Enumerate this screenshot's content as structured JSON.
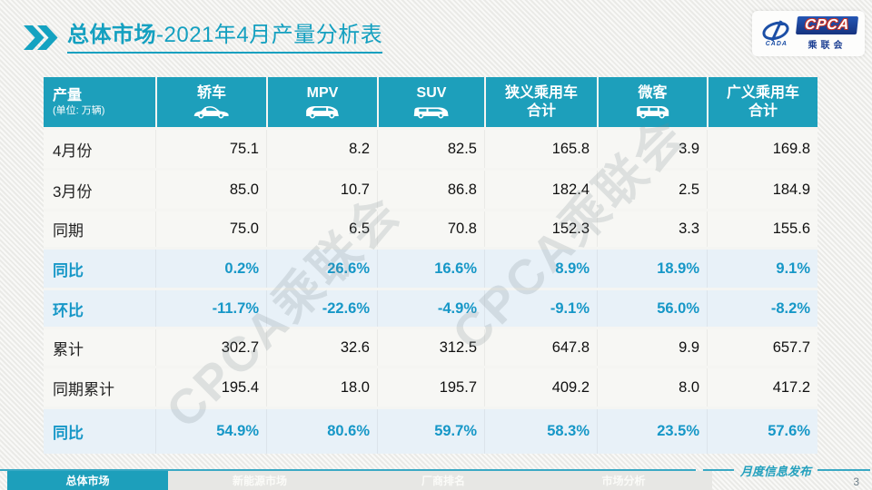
{
  "title": {
    "prefix": "总体市场",
    "rest": "-2021年4月产量分析表"
  },
  "logo": {
    "cpca": "CPCA",
    "sub": "乘联会",
    "emblem_text": "CADA"
  },
  "chart_data": {
    "type": "table",
    "title": "总体市场-2021年4月产量分析表",
    "corner_label": "产量",
    "unit_note": "(单位: 万辆)",
    "columns": [
      {
        "label": "轿车",
        "icon": "sedan-icon"
      },
      {
        "label": "MPV",
        "icon": "mpv-icon"
      },
      {
        "label": "SUV",
        "icon": "suv-icon"
      },
      {
        "label": "狭义乘用车",
        "label2": "合计"
      },
      {
        "label": "微客",
        "icon": "van-icon"
      },
      {
        "label": "广义乘用车",
        "label2": "合计"
      }
    ],
    "rows": [
      {
        "label": "4月份",
        "style": "normal",
        "values": [
          "75.1",
          "8.2",
          "82.5",
          "165.8",
          "3.9",
          "169.8"
        ]
      },
      {
        "label": "3月份",
        "style": "normal",
        "values": [
          "85.0",
          "10.7",
          "86.8",
          "182.4",
          "2.5",
          "184.9"
        ]
      },
      {
        "label": "同期",
        "style": "normal",
        "values": [
          "75.0",
          "6.5",
          "70.8",
          "152.3",
          "3.3",
          "155.6"
        ]
      },
      {
        "label": "同比",
        "style": "percent",
        "values": [
          "0.2%",
          "26.6%",
          "16.6%",
          "8.9%",
          "18.9%",
          "9.1%"
        ]
      },
      {
        "label": "环比",
        "style": "percent",
        "values": [
          "-11.7%",
          "-22.6%",
          "-4.9%",
          "-9.1%",
          "56.0%",
          "-8.2%"
        ]
      },
      {
        "label": "累计",
        "style": "normal",
        "values": [
          "302.7",
          "32.6",
          "312.5",
          "647.8",
          "9.9",
          "657.7"
        ]
      },
      {
        "label": "同期累计",
        "style": "normal",
        "values": [
          "195.4",
          "18.0",
          "195.7",
          "409.2",
          "8.0",
          "417.2"
        ]
      },
      {
        "label": "同比",
        "style": "percent",
        "values": [
          "54.9%",
          "80.6%",
          "59.7%",
          "58.3%",
          "23.5%",
          "57.6%"
        ]
      }
    ]
  },
  "watermark": "CPCA乘联会",
  "footer": {
    "tabs": [
      {
        "label": "总体市场",
        "active": true
      },
      {
        "label": "新能源市场",
        "active": false
      },
      {
        "label": "厂商排名",
        "active": false
      },
      {
        "label": "市场分析",
        "active": false
      }
    ],
    "publish_label": "月度信息发布",
    "page_number": "3"
  },
  "colors": {
    "accent": "#14A0C0",
    "header_bg": "#1D9FBB",
    "highlight_row": "#E8F1F8",
    "percent_text": "#1697C7",
    "logo_blue": "#1C4FA6"
  }
}
